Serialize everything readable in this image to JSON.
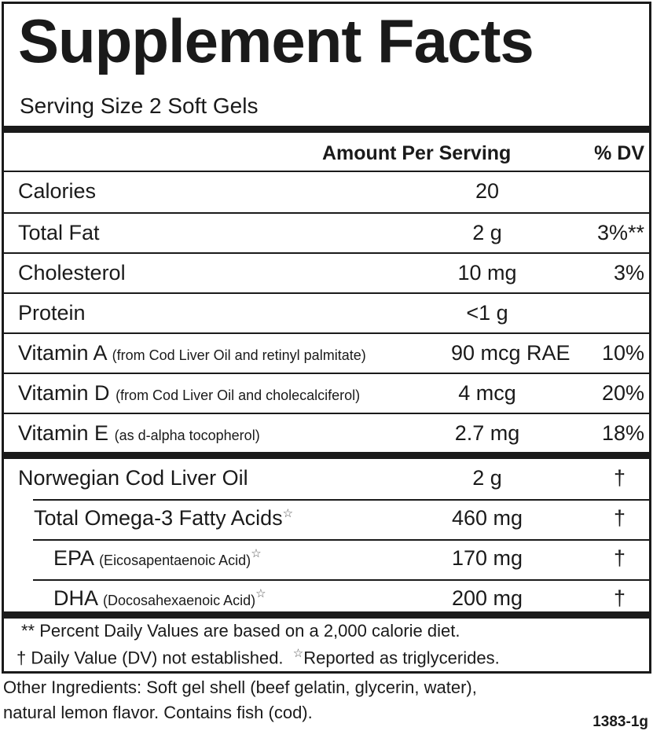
{
  "title": "Supplement Facts",
  "serving_size": "Serving Size 2 Soft Gels",
  "header": {
    "amount": "Amount Per Serving",
    "dv": "% DV"
  },
  "nutrients": [
    {
      "name": "Calories",
      "note": "",
      "amount": "20",
      "dv": ""
    },
    {
      "name": "Total Fat",
      "note": "",
      "amount": "2 g",
      "dv": "3%**"
    },
    {
      "name": "Cholesterol",
      "note": "",
      "amount": "10 mg",
      "dv": "3%"
    },
    {
      "name": "Protein",
      "note": "",
      "amount": "<1 g",
      "dv": ""
    },
    {
      "name": "Vitamin A",
      "note": "(from Cod Liver Oil and retinyl palmitate)",
      "amount": "90 mcg RAE",
      "dv": "10%"
    },
    {
      "name": "Vitamin D",
      "note": "(from Cod Liver Oil and cholecalciferol)",
      "amount": "4 mcg",
      "dv": "20%"
    },
    {
      "name": "Vitamin E",
      "note": "(as d-alpha tocopherol)",
      "amount": "2.7 mg",
      "dv": "18%"
    }
  ],
  "oils": [
    {
      "name": "Norwegian Cod Liver Oil",
      "note": "",
      "star": "",
      "amount": "2 g",
      "dv": "†"
    },
    {
      "name": "Total Omega-3 Fatty Acids",
      "note": "",
      "star": "☆",
      "amount": "460 mg",
      "dv": "†"
    },
    {
      "name": "EPA",
      "note": "(Eicosapentaenoic Acid)",
      "star": "☆",
      "amount": "170 mg",
      "dv": "†"
    },
    {
      "name": "DHA",
      "note": "(Docosahexaenoic Acid)",
      "star": "☆",
      "amount": "200 mg",
      "dv": "†"
    }
  ],
  "footnotes": {
    "line1": "** Percent Daily Values are based on a 2,000 calorie diet.",
    "line2a": "† Daily Value (DV) not established.",
    "star": "☆",
    "line2b": "Reported as triglycerides."
  },
  "other_ingredients": {
    "line1": "Other Ingredients: Soft gel shell (beef gelatin, glycerin, water),",
    "line2": "natural lemon flavor.  Contains fish (cod)."
  },
  "code": "1383-1g"
}
